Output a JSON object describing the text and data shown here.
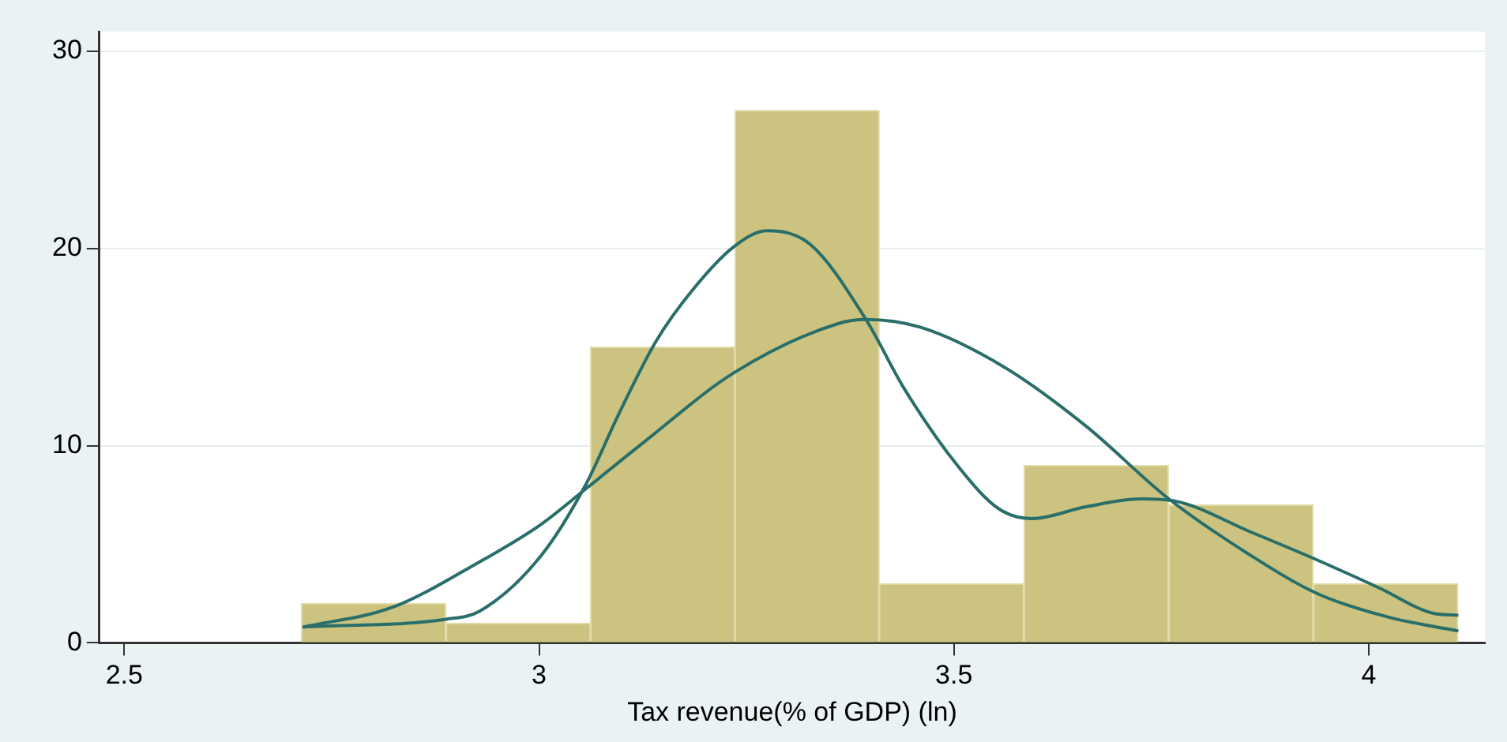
{
  "chart_data": {
    "type": "histogram",
    "xlabel": "Tax revenue(% of GDP) (ln)",
    "bins": [
      2.713,
      2.888,
      3.062,
      3.236,
      3.41,
      3.584,
      3.759,
      3.933,
      4.108
    ],
    "values": [
      2,
      1,
      15,
      27,
      3,
      9,
      7,
      3
    ],
    "color": "#cbc37f",
    "series": [
      {
        "type": "line",
        "color": "#2a6e6a",
        "x": [
          2.715,
          2.888,
          2.928,
          3.002,
          3.056,
          3.096,
          3.141,
          3.187,
          3.235,
          3.275,
          3.327,
          3.394,
          3.44,
          3.506,
          3.554,
          3.594,
          3.659,
          3.725,
          3.765,
          3.859,
          3.938,
          4.012,
          4.078,
          4.108
        ],
        "values": [
          0.8,
          1.2,
          1.6,
          4.4,
          8,
          11.6,
          15.3,
          18,
          20.1,
          20.9,
          20.2,
          16.4,
          12.9,
          8.9,
          6.8,
          6.3,
          6.9,
          7.3,
          7.2,
          5.6,
          4.2,
          2.8,
          1.5,
          1.4
        ]
      },
      {
        "type": "line",
        "color": "#2a6e6a",
        "x": [
          2.715,
          2.823,
          2.928,
          3.002,
          3.056,
          3.127,
          3.235,
          3.361,
          3.394,
          3.46,
          3.56,
          3.659,
          3.759,
          3.859,
          3.938,
          4.024,
          4.108
        ],
        "values": [
          0.8,
          1.8,
          4.1,
          6,
          7.8,
          10.2,
          13.7,
          16.2,
          16.4,
          16,
          14,
          11,
          7.3,
          4.4,
          2.5,
          1.3,
          0.6
        ]
      }
    ],
    "xlim": [
      2.47,
      4.14
    ],
    "xticks": [
      2.5,
      3,
      3.5,
      4
    ],
    "ylim": [
      0,
      31
    ],
    "yticks": [
      0,
      10,
      20,
      30
    ],
    "grid": "y",
    "legend": false
  }
}
